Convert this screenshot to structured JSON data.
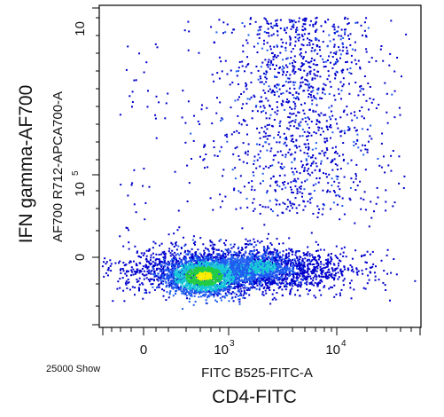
{
  "chart_data": {
    "type": "scatter",
    "plot_style": "flow cytometry density dot plot",
    "x_axis": {
      "channel_label": "FITC B525-FITC-A",
      "marker_label": "CD4-FITC",
      "scale": "biexponential",
      "tick_labels": [
        {
          "value": 0,
          "text": "0"
        },
        {
          "value": 1000,
          "text": "10",
          "exp": "3"
        },
        {
          "value": 10000,
          "text": "10",
          "exp": "4"
        }
      ]
    },
    "y_axis": {
      "channel_label": "AF700 R712-APCA700-A",
      "marker_label": "IFN gamma-AF700",
      "scale": "biexponential",
      "tick_labels": [
        {
          "value": 0,
          "text": "0"
        },
        {
          "value": 100000,
          "text": "10",
          "exp": "5"
        },
        {
          "value": 1000000,
          "text": "10",
          "exp": ""
        }
      ]
    },
    "event_count_text": "25000 Show",
    "density_colors": [
      "#0000cc",
      "#1e5cf0",
      "#18c8d8",
      "#22cc44",
      "#ffee00"
    ],
    "populations": [
      {
        "name": "CD4+ IFNg- cluster",
        "x_center_pos": 0.36,
        "y_center_pos": 0.17,
        "density": "high"
      },
      {
        "name": "CD4+ IFNg+ column",
        "x_center_pos": 0.62,
        "y_center_pos": 0.55,
        "density": "low"
      }
    ]
  }
}
